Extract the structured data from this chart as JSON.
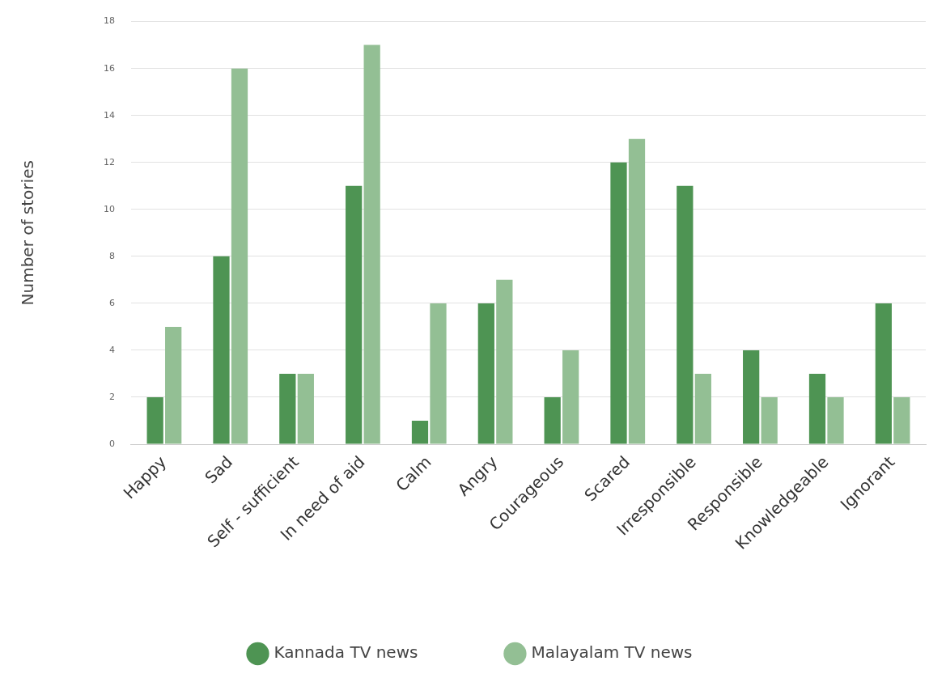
{
  "chart_data": {
    "type": "bar",
    "ylabel": "Number of stories",
    "categories": [
      "Happy",
      "Sad",
      "Self - sufficient",
      "In need of aid",
      "Calm",
      "Angry",
      "Courageous",
      "Scared",
      "Irresponsible",
      "Responsible",
      "Knowledgeable",
      "Ignorant"
    ],
    "series": [
      {
        "name": "Kannada TV news",
        "color": "#4e9453",
        "values": [
          2,
          8,
          3,
          11,
          1,
          6,
          2,
          12,
          11,
          4,
          3,
          6
        ]
      },
      {
        "name": "Malayalam TV news",
        "color": "#93bf94",
        "values": [
          5,
          16,
          3,
          17,
          6,
          7,
          4,
          13,
          3,
          2,
          2,
          2
        ]
      }
    ],
    "ylim": [
      0,
      18
    ],
    "yticks": [
      0,
      2,
      4,
      6,
      8,
      10,
      12,
      14,
      16,
      18
    ],
    "grid": "y",
    "legend": "bottom",
    "marker": "circle"
  }
}
